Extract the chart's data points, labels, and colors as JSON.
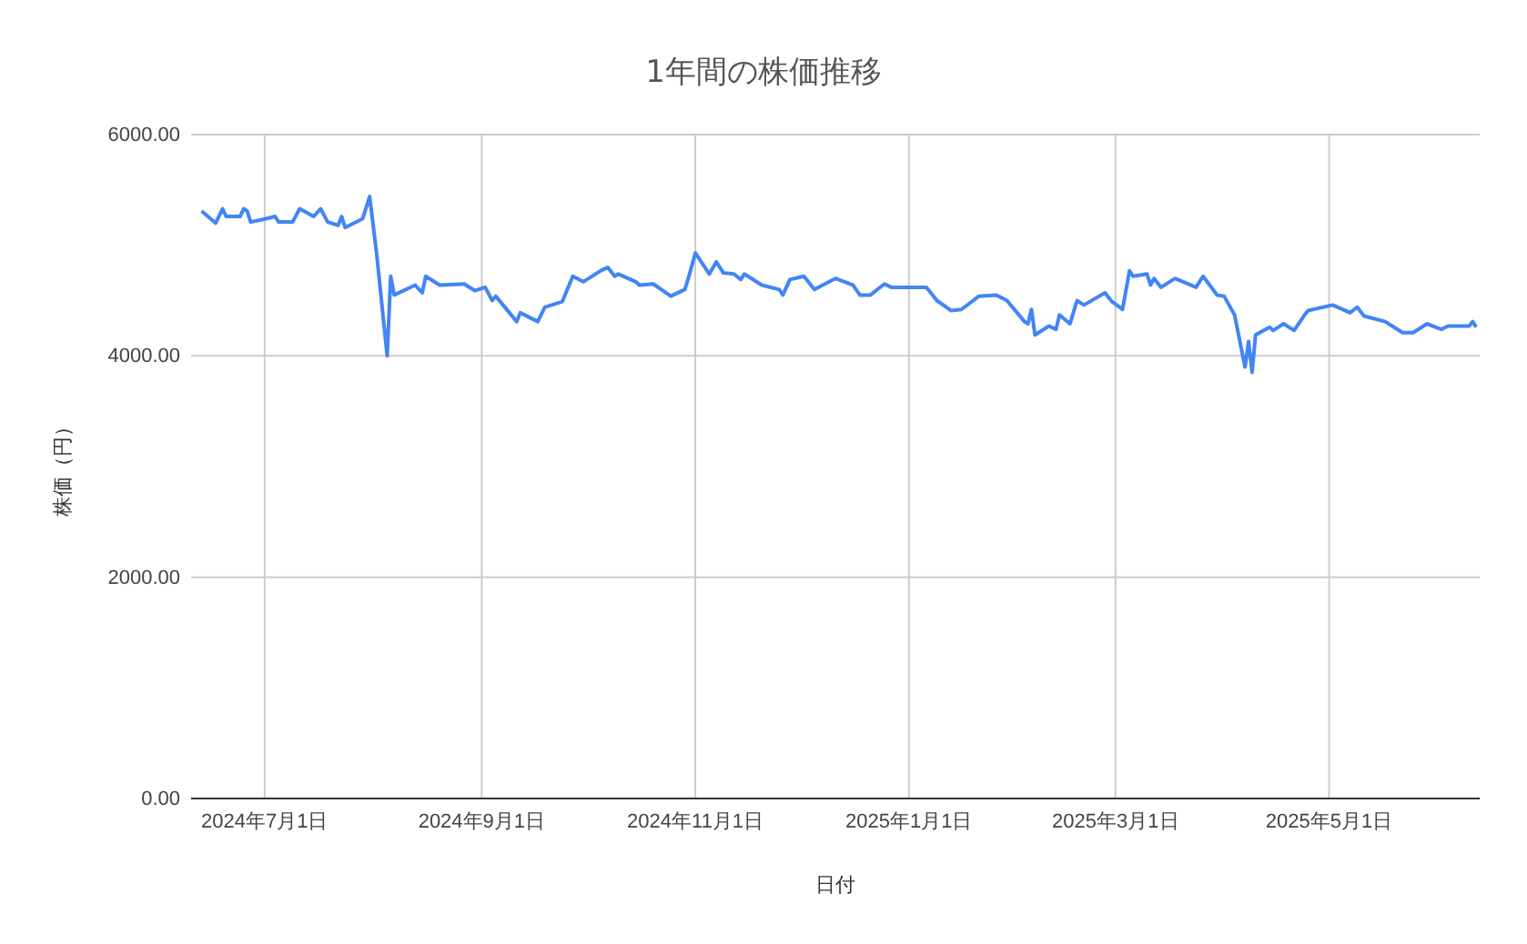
{
  "chart_data": {
    "type": "line",
    "title": "1年間の株価推移",
    "xlabel": "日付",
    "ylabel": "株価（円）",
    "xlim": [
      "2024-06-10",
      "2025-06-13"
    ],
    "xticks": [
      {
        "value": "2024-07-01",
        "label": "2024年7月1日"
      },
      {
        "value": "2024-09-01",
        "label": "2024年9月1日"
      },
      {
        "value": "2024-11-01",
        "label": "2024年11月1日"
      },
      {
        "value": "2025-01-01",
        "label": "2025年1月1日"
      },
      {
        "value": "2025-03-01",
        "label": "2025年3月1日"
      },
      {
        "value": "2025-05-01",
        "label": "2025年5月1日"
      }
    ],
    "ylim": [
      0,
      6000
    ],
    "yticks": [
      {
        "value": 0,
        "label": "0.00"
      },
      {
        "value": 2000,
        "label": "2000.00"
      },
      {
        "value": 4000,
        "label": "4000.00"
      },
      {
        "value": 6000,
        "label": "6000.00"
      }
    ],
    "grid": true,
    "x": [
      "2024-06-13",
      "2024-06-17",
      "2024-06-19",
      "2024-06-20",
      "2024-06-24",
      "2024-06-25",
      "2024-06-26",
      "2024-06-27",
      "2024-06-30",
      "2024-07-04",
      "2024-07-05",
      "2024-07-09",
      "2024-07-11",
      "2024-07-15",
      "2024-07-17",
      "2024-07-19",
      "2024-07-22",
      "2024-07-23",
      "2024-07-24",
      "2024-07-29",
      "2024-07-31",
      "2024-08-02",
      "2024-08-05",
      "2024-08-06",
      "2024-08-07",
      "2024-08-13",
      "2024-08-15",
      "2024-08-16",
      "2024-08-20",
      "2024-08-27",
      "2024-08-30",
      "2024-09-02",
      "2024-09-04",
      "2024-09-05",
      "2024-09-11",
      "2024-09-12",
      "2024-09-17",
      "2024-09-19",
      "2024-09-24",
      "2024-09-27",
      "2024-09-30",
      "2024-10-05",
      "2024-10-07",
      "2024-10-09",
      "2024-10-10",
      "2024-10-15",
      "2024-10-16",
      "2024-10-20",
      "2024-10-25",
      "2024-10-29",
      "2024-10-30",
      "2024-11-01",
      "2024-11-05",
      "2024-11-07",
      "2024-11-09",
      "2024-11-12",
      "2024-11-14",
      "2024-11-15",
      "2024-11-20",
      "2024-11-25",
      "2024-11-26",
      "2024-11-28",
      "2024-12-02",
      "2024-12-05",
      "2024-12-11",
      "2024-12-16",
      "2024-12-18",
      "2024-12-21",
      "2024-12-25",
      "2024-12-27",
      "2025-01-06",
      "2025-01-09",
      "2025-01-13",
      "2025-01-16",
      "2025-01-21",
      "2025-01-26",
      "2025-01-29",
      "2025-02-03",
      "2025-02-04",
      "2025-02-05",
      "2025-02-06",
      "2025-02-10",
      "2025-02-12",
      "2025-02-13",
      "2025-02-16",
      "2025-02-18",
      "2025-02-20",
      "2025-02-26",
      "2025-02-28",
      "2025-03-03",
      "2025-03-05",
      "2025-03-06",
      "2025-03-10",
      "2025-03-11",
      "2025-03-12",
      "2025-03-14",
      "2025-03-18",
      "2025-03-24",
      "2025-03-26",
      "2025-03-30",
      "2025-04-01",
      "2025-04-04",
      "2025-04-07",
      "2025-04-08",
      "2025-04-09",
      "2025-04-10",
      "2025-04-14",
      "2025-04-15",
      "2025-04-18",
      "2025-04-21",
      "2025-04-24",
      "2025-04-25",
      "2025-05-02",
      "2025-05-07",
      "2025-05-09",
      "2025-05-11",
      "2025-05-17",
      "2025-05-22",
      "2025-05-25",
      "2025-05-29",
      "2025-06-02",
      "2025-06-04",
      "2025-06-10",
      "2025-06-11",
      "2025-06-12"
    ],
    "series": [
      {
        "color": "#4285f4",
        "values": [
          5310,
          5200,
          5330,
          5260,
          5260,
          5330,
          5310,
          5210,
          5230,
          5260,
          5210,
          5210,
          5330,
          5260,
          5330,
          5210,
          5180,
          5260,
          5160,
          5240,
          5440,
          4920,
          4000,
          4720,
          4550,
          4640,
          4570,
          4720,
          4640,
          4650,
          4590,
          4620,
          4500,
          4540,
          4310,
          4390,
          4310,
          4440,
          4490,
          4720,
          4670,
          4770,
          4800,
          4720,
          4740,
          4670,
          4640,
          4650,
          4540,
          4600,
          4700,
          4930,
          4740,
          4850,
          4750,
          4740,
          4690,
          4740,
          4640,
          4600,
          4550,
          4690,
          4720,
          4600,
          4700,
          4640,
          4550,
          4550,
          4650,
          4620,
          4620,
          4500,
          4410,
          4420,
          4540,
          4550,
          4500,
          4310,
          4290,
          4420,
          4190,
          4270,
          4240,
          4370,
          4290,
          4500,
          4460,
          4570,
          4490,
          4420,
          4770,
          4720,
          4740,
          4640,
          4700,
          4620,
          4700,
          4620,
          4720,
          4550,
          4540,
          4370,
          3900,
          4130,
          3850,
          4190,
          4260,
          4230,
          4290,
          4230,
          4370,
          4410,
          4460,
          4390,
          4440,
          4360,
          4310,
          4210,
          4210,
          4290,
          4240,
          4270,
          4270,
          4310,
          4260
        ]
      }
    ]
  }
}
